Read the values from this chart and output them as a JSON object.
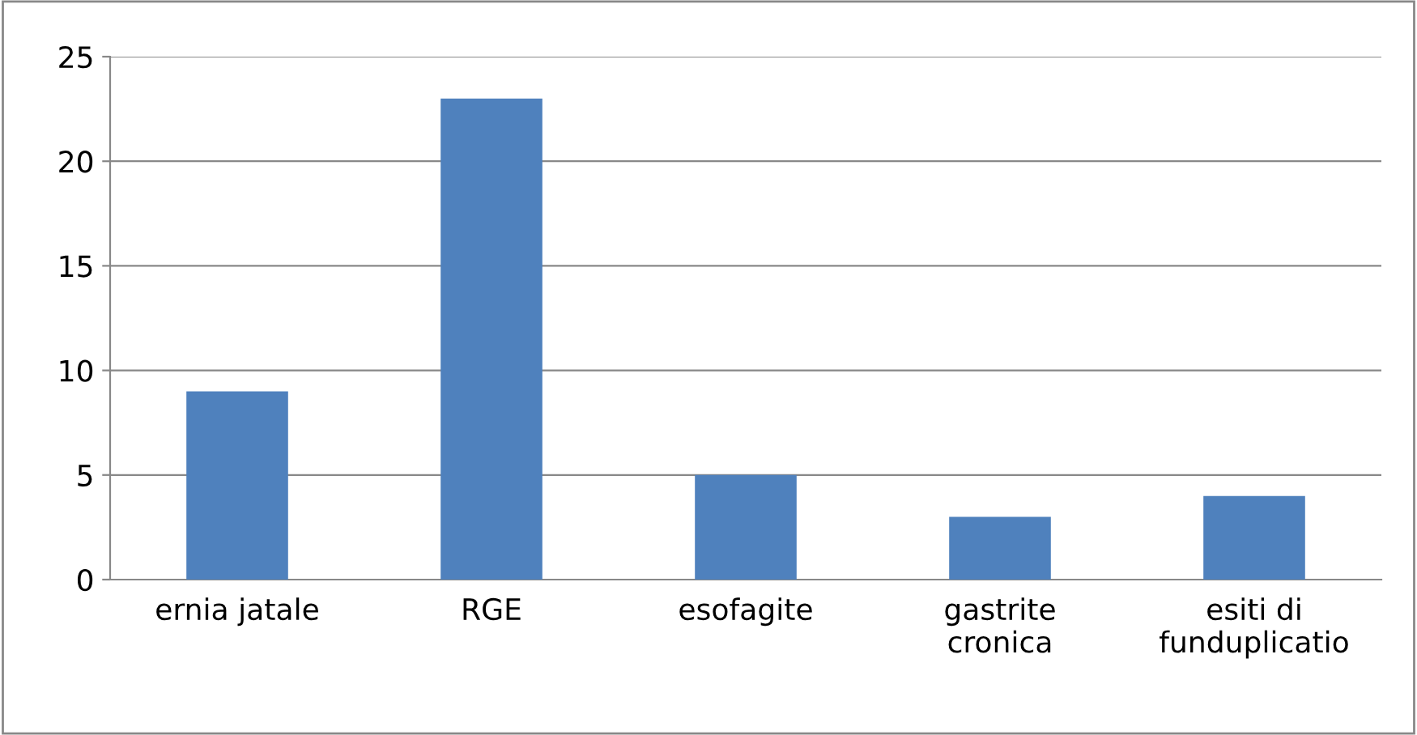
{
  "chart_data": {
    "type": "bar",
    "categories": [
      "ernia jatale",
      "RGE",
      "esofagite",
      "gastrite\ncronica",
      "esiti di\nfunduplicatio"
    ],
    "values": [
      9,
      23,
      5,
      3,
      4
    ],
    "color": "#4f81bd",
    "ylim": [
      0,
      25
    ],
    "yticks": [
      0,
      5,
      10,
      15,
      20,
      25
    ],
    "grid": "y"
  }
}
